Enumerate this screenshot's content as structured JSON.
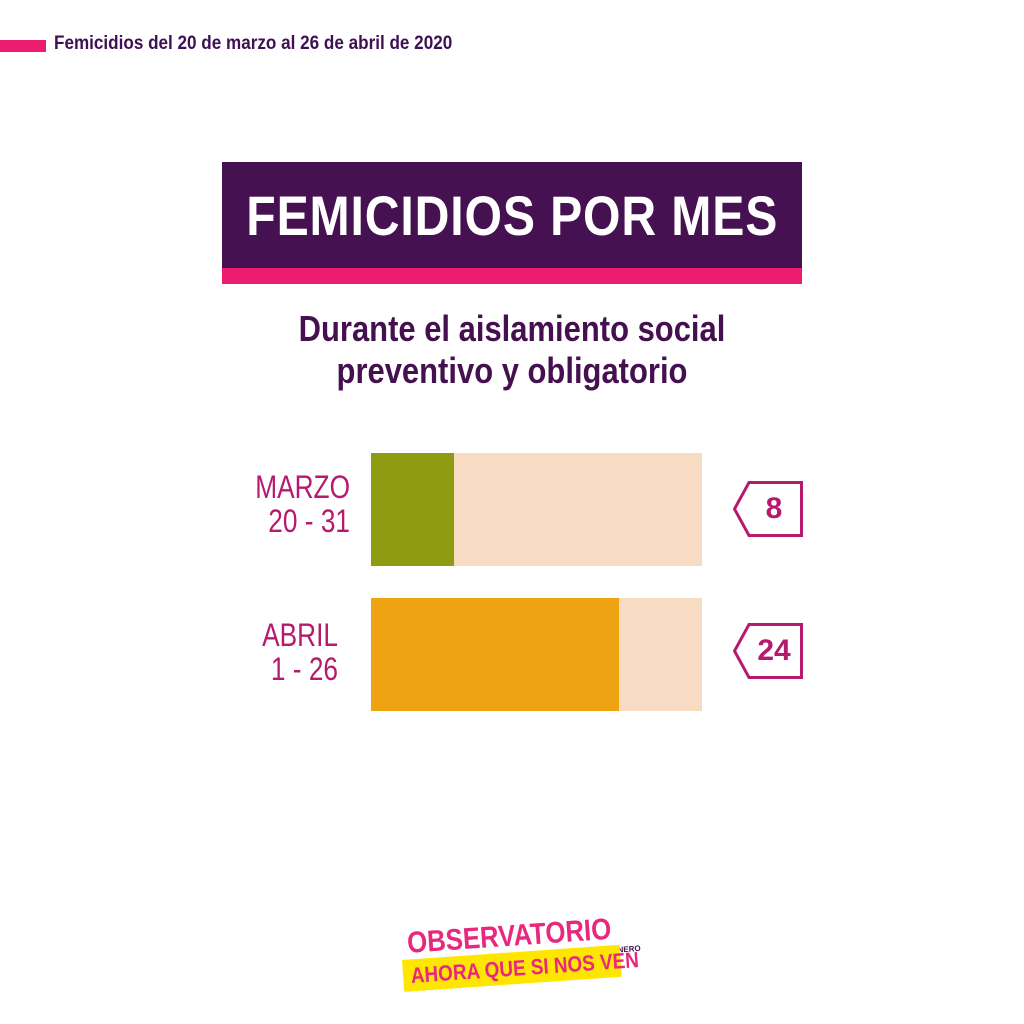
{
  "header": {
    "text": "Femicidios del 20 de marzo al 26 de abril de 2020",
    "accent_color": "#ec1d6f"
  },
  "chart_data": {
    "type": "bar",
    "title": "FEMICIDIOS POR MES",
    "subtitle_lines": [
      "Durante el aislamiento social",
      "preventivo y obligatorio"
    ],
    "orientation": "horizontal",
    "categories": [
      {
        "month": "MARZO",
        "range": "20 - 31"
      },
      {
        "month": "ABRIL",
        "range": "1 - 26"
      }
    ],
    "values": [
      8,
      24
    ],
    "xlim": [
      0,
      32
    ],
    "colors": [
      "#8f9c12",
      "#eea412"
    ],
    "track_color": "#f7dbc3",
    "grid": false,
    "legend": "none"
  },
  "colors": {
    "title_bg": "#461150",
    "accent": "#ec1d6f",
    "label": "#b51a6e",
    "subtitle": "#45104f"
  },
  "logo": {
    "top": "OBSERVATORIO",
    "small": "DE LAS VIOLENCIAS DE GÉNERO",
    "bottom": "AHORA QUE SI NOS VEN"
  }
}
